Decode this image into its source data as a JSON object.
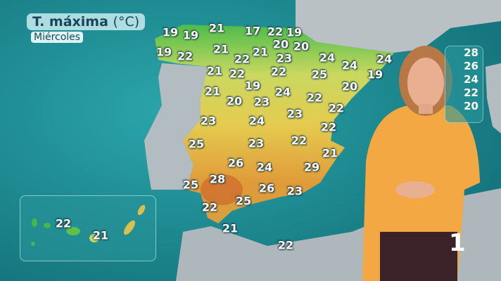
{
  "header": {
    "title": "T. máxima",
    "unit": "(°C)",
    "day": "Miércoles"
  },
  "temperatures": {
    "peninsula": [
      "19",
      "19",
      "21",
      "17",
      "22",
      "19",
      "19",
      "22",
      "21",
      "22",
      "21",
      "20",
      "23",
      "20",
      "24",
      "24",
      "21",
      "22",
      "22",
      "25",
      "24",
      "19",
      "21",
      "19",
      "24",
      "22",
      "20",
      "20",
      "23",
      "23",
      "22",
      "23",
      "24",
      "22",
      "25",
      "23",
      "22",
      "21",
      "26",
      "24",
      "29",
      "25",
      "28",
      "26",
      "23",
      "22",
      "25"
    ],
    "north_africa": [
      "21",
      "22"
    ],
    "canarias": [
      "22",
      "21"
    ]
  },
  "legend": {
    "values": [
      "28",
      "26",
      "24",
      "22",
      "20"
    ]
  },
  "channel_logo": "1",
  "colors": {
    "sea": "#1d8e94",
    "land_other": "#b7c0c4",
    "warm": "#e0a030",
    "hot": "#c8602a",
    "cool": "#44b84a"
  }
}
